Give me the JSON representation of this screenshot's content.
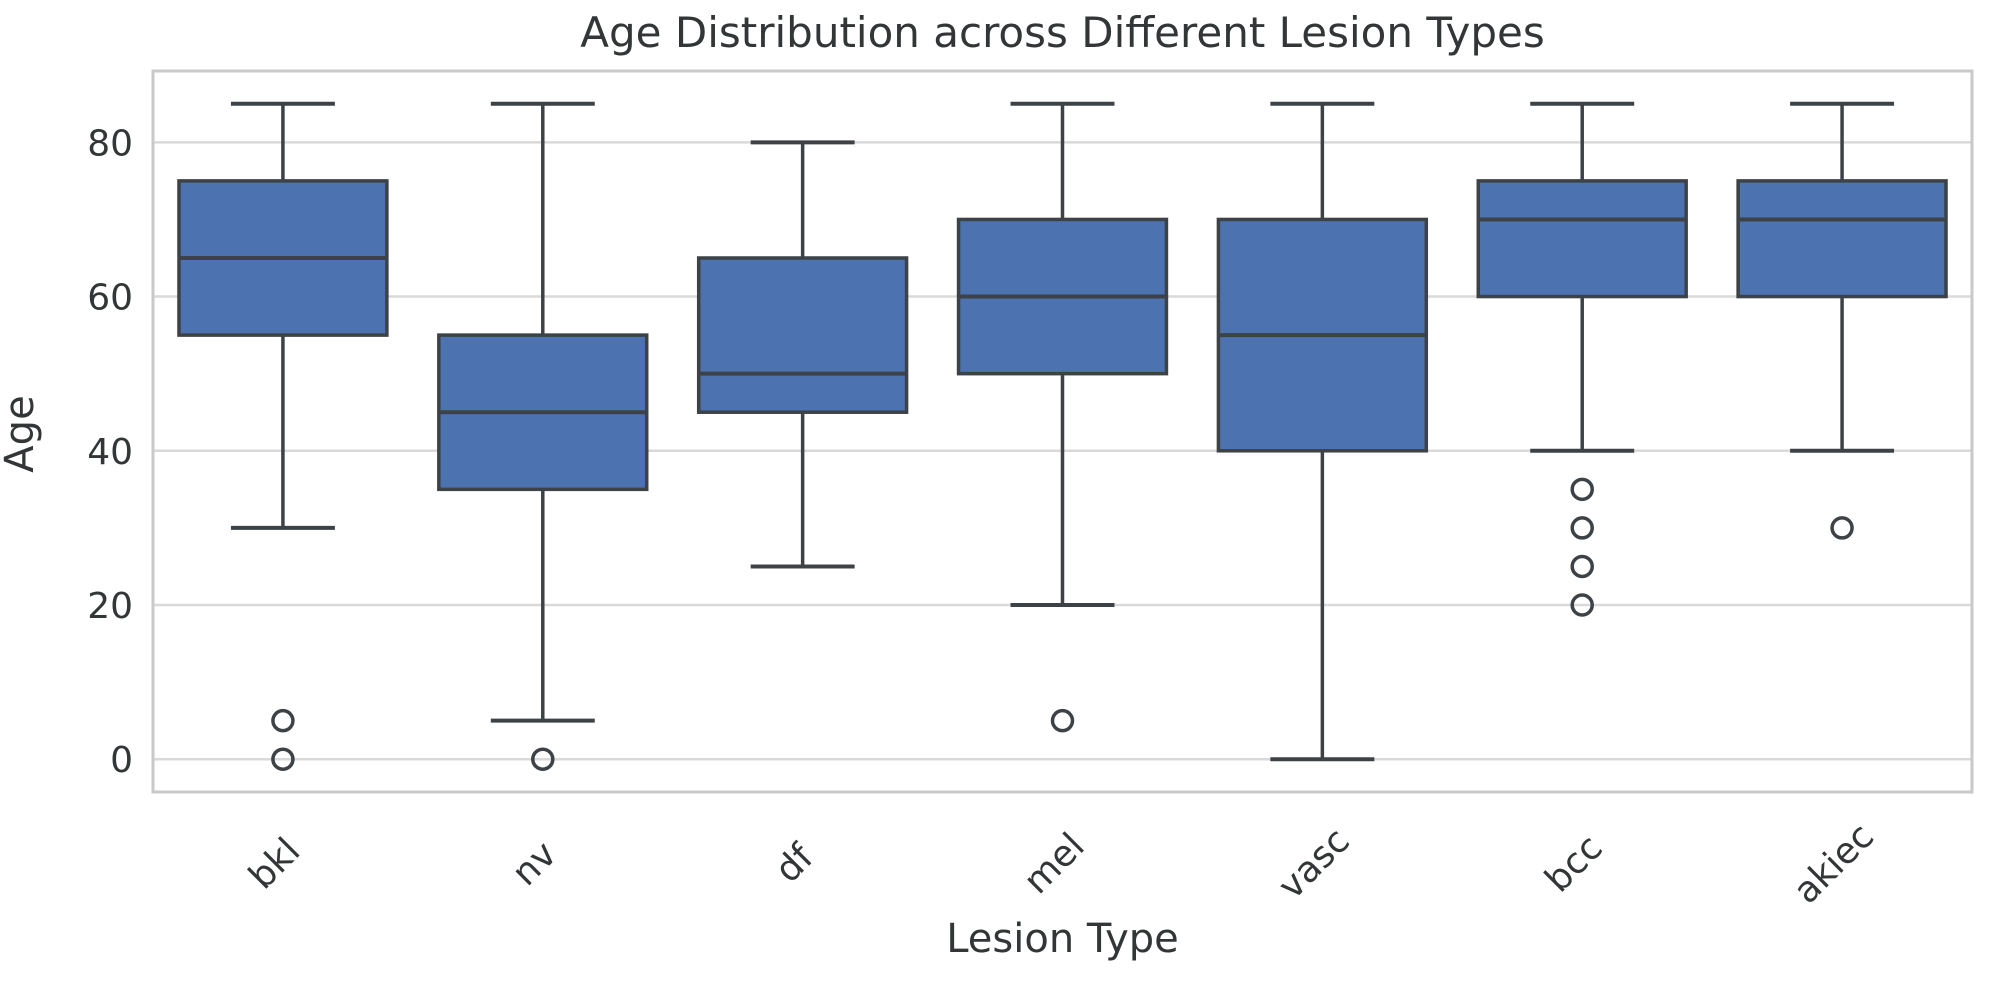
{
  "chart_data": {
    "type": "box",
    "title": "Age Distribution across Different Lesion Types",
    "xlabel": "Lesion Type",
    "ylabel": "Age",
    "categories": [
      "bkl",
      "nv",
      "df",
      "mel",
      "vasc",
      "bcc",
      "akiec"
    ],
    "boxes": [
      {
        "category": "bkl",
        "whisker_low": 30,
        "q1": 55,
        "median": 65,
        "q3": 75,
        "whisker_high": 85,
        "outliers": [
          5,
          0
        ]
      },
      {
        "category": "nv",
        "whisker_low": 5,
        "q1": 35,
        "median": 45,
        "q3": 55,
        "whisker_high": 85,
        "outliers": [
          0
        ]
      },
      {
        "category": "df",
        "whisker_low": 25,
        "q1": 45,
        "median": 50,
        "q3": 65,
        "whisker_high": 80,
        "outliers": []
      },
      {
        "category": "mel",
        "whisker_low": 20,
        "q1": 50,
        "median": 60,
        "q3": 70,
        "whisker_high": 85,
        "outliers": [
          5
        ]
      },
      {
        "category": "vasc",
        "whisker_low": 0,
        "q1": 40,
        "median": 55,
        "q3": 70,
        "whisker_high": 85,
        "outliers": []
      },
      {
        "category": "bcc",
        "whisker_low": 40,
        "q1": 60,
        "median": 70,
        "q3": 75,
        "whisker_high": 85,
        "outliers": [
          35,
          30,
          25,
          20
        ]
      },
      {
        "category": "akiec",
        "whisker_low": 40,
        "q1": 60,
        "median": 70,
        "q3": 75,
        "whisker_high": 85,
        "outliers": [
          30
        ]
      }
    ],
    "yticks": [
      0,
      20,
      40,
      60,
      80
    ],
    "ylim": [
      -4.25,
      89.25
    ],
    "grid": "horizontal",
    "legend": "none",
    "x_tick_rotation_deg": 45,
    "colors": {
      "box_fill": "#4c72b0",
      "line": "#3d4247",
      "grid": "#d9d9d9",
      "spine": "#c9c9c9",
      "text": "#333637"
    }
  }
}
